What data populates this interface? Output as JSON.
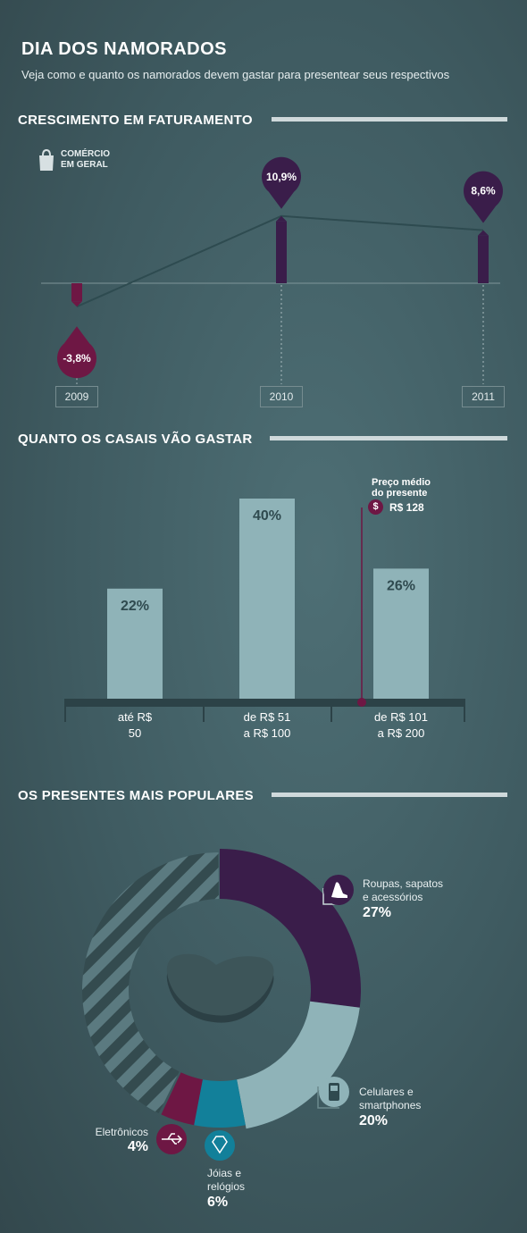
{
  "header": {
    "title": "DIA DOS NAMORADOS",
    "subtitle": "Veja como e quanto os namorados devem gastar para presentear seus respectivos"
  },
  "sections": {
    "growth": "CRESCIMENTO EM FATURAMENTO",
    "spending": "QUANTO OS CASAIS VÃO GASTAR",
    "gifts": "OS PRESENTES MAIS POPULARES"
  },
  "growth_legend": {
    "line1": "COMÉRCIO",
    "line2": "EM GERAL",
    "icon": "shopping-bag-icon"
  },
  "spending_avg": {
    "line1": "Preço médio",
    "line2": "do presente",
    "value": "R$ 128",
    "icon": "dollar-icon"
  },
  "colors": {
    "purple_dark": "#3a1d4a",
    "wine": "#6e1744",
    "light_blue": "#8fb3b8",
    "teal": "#12809a",
    "stripe": "#344b4f"
  },
  "chart_data": [
    {
      "type": "line",
      "title": "CRESCIMENTO EM FATURAMENTO",
      "series_label": "COMÉRCIO EM GERAL",
      "x": [
        "2009",
        "2010",
        "2011"
      ],
      "values": [
        -3.8,
        10.9,
        8.6
      ],
      "labels": [
        "-3,8%",
        "10,9%",
        "8,6%"
      ],
      "ylim": [
        -5,
        12
      ]
    },
    {
      "type": "bar",
      "title": "QUANTO OS CASAIS VÃO GASTAR",
      "categories": [
        [
          "até R$",
          "50"
        ],
        [
          "de R$ 51",
          "a R$ 100"
        ],
        [
          "de R$ 101",
          "a R$ 200"
        ]
      ],
      "values": [
        22,
        40,
        26
      ],
      "labels": [
        "22%",
        "40%",
        "26%"
      ],
      "ylim": [
        0,
        45
      ],
      "annotation": {
        "label": "Preço médio do presente",
        "value": 128,
        "text": "R$ 128"
      }
    },
    {
      "type": "pie",
      "title": "OS PRESENTES MAIS POPULARES",
      "slices": [
        {
          "label": "Roupas, sapatos e acessórios",
          "lines": [
            "Roupas, sapatos",
            "e acessórios"
          ],
          "value": 27,
          "pct": "27%",
          "color": "#3a1d4a",
          "icon": "high-heel-icon"
        },
        {
          "label": "Celulares e smartphones",
          "lines": [
            "Celulares e",
            "smartphones"
          ],
          "value": 20,
          "pct": "20%",
          "color": "#8fb3b8",
          "icon": "mobile-phone-icon"
        },
        {
          "label": "Jóias e relógios",
          "lines": [
            "Jóias e",
            "relógios"
          ],
          "value": 6,
          "pct": "6%",
          "color": "#12809a",
          "icon": "diamond-icon"
        },
        {
          "label": "Eletrônicos",
          "lines": [
            "Eletrônicos"
          ],
          "value": 4,
          "pct": "4%",
          "color": "#6e1744",
          "icon": "usb-icon"
        }
      ]
    }
  ]
}
